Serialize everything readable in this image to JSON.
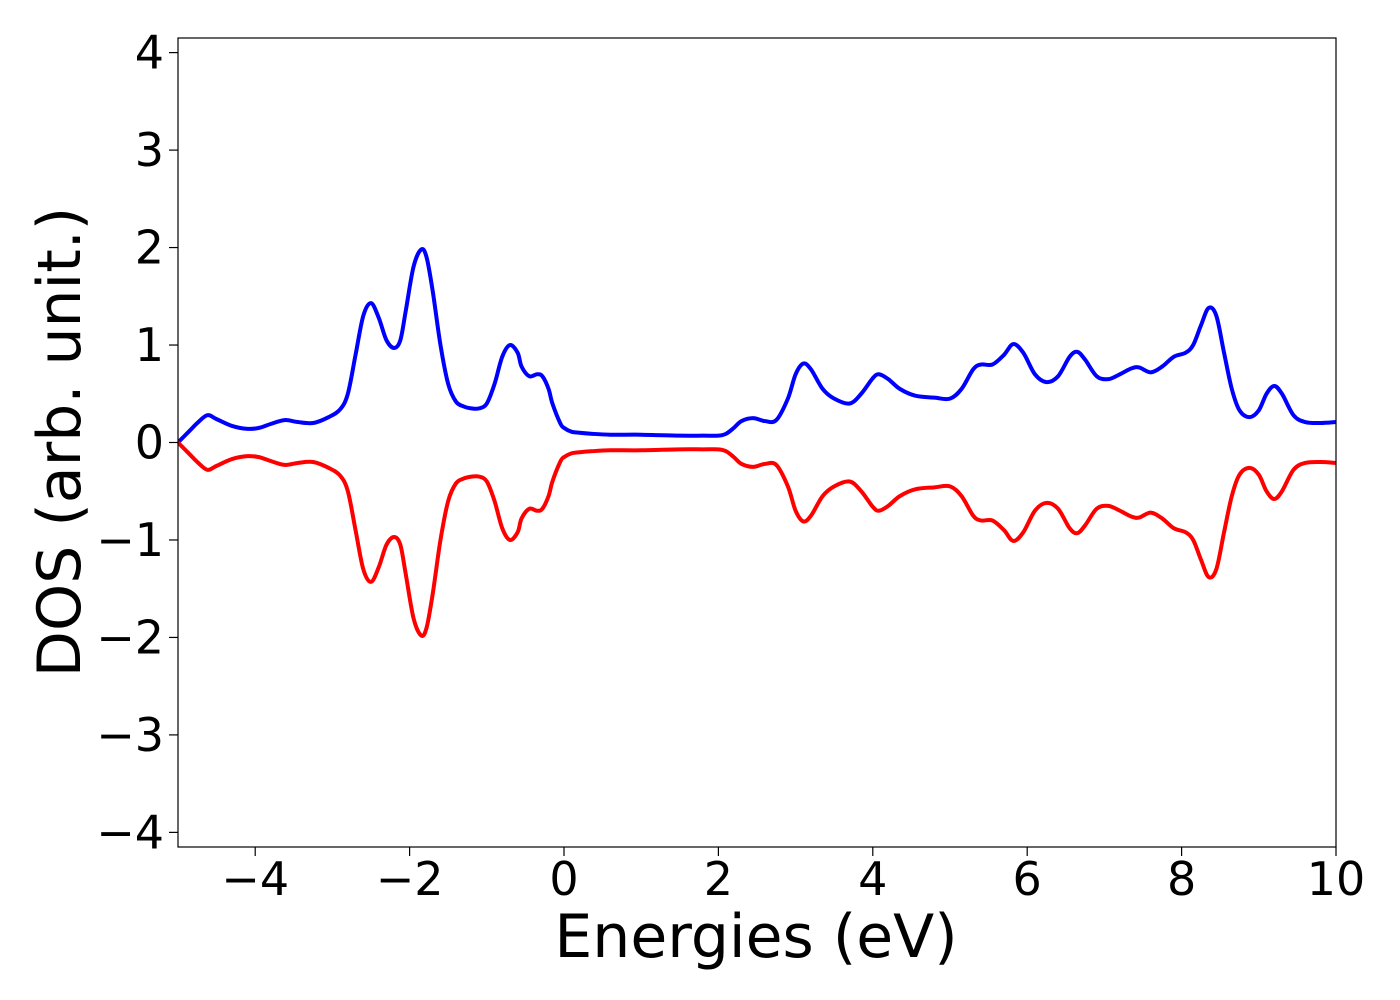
{
  "chart_data": {
    "type": "line",
    "title": "",
    "xlabel": "Energies (eV)",
    "ylabel": "DOS (arb. unit.)",
    "xlim": [
      -5,
      10
    ],
    "ylim": [
      -4.15,
      4.15
    ],
    "xticks": [
      -4,
      -2,
      0,
      2,
      4,
      6,
      8,
      10
    ],
    "yticks": [
      -4,
      -3,
      -2,
      -1,
      0,
      1,
      2,
      3,
      4
    ],
    "grid": false,
    "legend": "none",
    "series": [
      {
        "color": "#0000ff",
        "x": [
          -5.0,
          -4.85,
          -4.75,
          -4.62,
          -4.5,
          -4.3,
          -4.1,
          -3.95,
          -3.8,
          -3.62,
          -3.45,
          -3.25,
          -3.05,
          -2.9,
          -2.8,
          -2.7,
          -2.6,
          -2.5,
          -2.4,
          -2.3,
          -2.2,
          -2.12,
          -2.05,
          -1.95,
          -1.85,
          -1.78,
          -1.7,
          -1.6,
          -1.5,
          -1.4,
          -1.3,
          -1.2,
          -1.1,
          -1.0,
          -0.9,
          -0.8,
          -0.7,
          -0.6,
          -0.55,
          -0.45,
          -0.35,
          -0.28,
          -0.2,
          -0.15,
          -0.05,
          0.0,
          0.1,
          0.2,
          0.35,
          0.6,
          1.0,
          1.5,
          1.8,
          2.0,
          2.1,
          2.2,
          2.3,
          2.45,
          2.6,
          2.75,
          2.9,
          3.0,
          3.1,
          3.2,
          3.35,
          3.5,
          3.7,
          3.85,
          4.0,
          4.08,
          4.2,
          4.35,
          4.55,
          4.8,
          5.0,
          5.15,
          5.3,
          5.4,
          5.55,
          5.7,
          5.82,
          5.95,
          6.1,
          6.25,
          6.4,
          6.55,
          6.65,
          6.75,
          6.9,
          7.05,
          7.2,
          7.35,
          7.45,
          7.6,
          7.75,
          7.9,
          8.05,
          8.15,
          8.25,
          8.35,
          8.45,
          8.55,
          8.65,
          8.75,
          8.88,
          9.0,
          9.1,
          9.2,
          9.3,
          9.45,
          9.6,
          9.8,
          10.0
        ],
        "y": [
          0.0,
          0.12,
          0.2,
          0.28,
          0.24,
          0.17,
          0.14,
          0.15,
          0.19,
          0.23,
          0.21,
          0.2,
          0.26,
          0.34,
          0.5,
          0.9,
          1.3,
          1.43,
          1.28,
          1.05,
          0.97,
          1.05,
          1.35,
          1.8,
          1.98,
          1.9,
          1.55,
          1.0,
          0.6,
          0.42,
          0.37,
          0.35,
          0.35,
          0.4,
          0.6,
          0.88,
          1.0,
          0.92,
          0.78,
          0.68,
          0.7,
          0.68,
          0.55,
          0.4,
          0.2,
          0.15,
          0.11,
          0.1,
          0.09,
          0.08,
          0.08,
          0.07,
          0.07,
          0.07,
          0.09,
          0.15,
          0.22,
          0.25,
          0.22,
          0.23,
          0.45,
          0.7,
          0.81,
          0.75,
          0.55,
          0.45,
          0.4,
          0.5,
          0.66,
          0.7,
          0.65,
          0.55,
          0.48,
          0.46,
          0.45,
          0.55,
          0.75,
          0.8,
          0.8,
          0.9,
          1.01,
          0.92,
          0.7,
          0.62,
          0.68,
          0.88,
          0.93,
          0.85,
          0.68,
          0.65,
          0.7,
          0.76,
          0.77,
          0.72,
          0.78,
          0.88,
          0.92,
          1.0,
          1.2,
          1.38,
          1.3,
          0.92,
          0.55,
          0.33,
          0.26,
          0.33,
          0.5,
          0.58,
          0.5,
          0.28,
          0.21,
          0.2,
          0.21
        ]
      },
      {
        "color": "#ff0000",
        "x": [
          -5.0,
          -4.85,
          -4.75,
          -4.62,
          -4.5,
          -4.3,
          -4.1,
          -3.95,
          -3.8,
          -3.62,
          -3.45,
          -3.25,
          -3.05,
          -2.9,
          -2.8,
          -2.7,
          -2.6,
          -2.5,
          -2.4,
          -2.3,
          -2.2,
          -2.12,
          -2.05,
          -1.95,
          -1.85,
          -1.78,
          -1.7,
          -1.6,
          -1.5,
          -1.4,
          -1.3,
          -1.2,
          -1.1,
          -1.0,
          -0.9,
          -0.8,
          -0.7,
          -0.6,
          -0.55,
          -0.45,
          -0.35,
          -0.28,
          -0.2,
          -0.15,
          -0.05,
          0.0,
          0.1,
          0.2,
          0.35,
          0.6,
          1.0,
          1.5,
          1.8,
          2.0,
          2.1,
          2.2,
          2.3,
          2.45,
          2.6,
          2.75,
          2.9,
          3.0,
          3.1,
          3.2,
          3.35,
          3.5,
          3.7,
          3.85,
          4.0,
          4.08,
          4.2,
          4.35,
          4.55,
          4.8,
          5.0,
          5.15,
          5.3,
          5.4,
          5.55,
          5.7,
          5.82,
          5.95,
          6.1,
          6.25,
          6.4,
          6.55,
          6.65,
          6.75,
          6.9,
          7.05,
          7.2,
          7.35,
          7.45,
          7.6,
          7.75,
          7.9,
          8.05,
          8.15,
          8.25,
          8.35,
          8.45,
          8.55,
          8.65,
          8.75,
          8.88,
          9.0,
          9.1,
          9.2,
          9.3,
          9.45,
          9.6,
          9.8,
          10.0
        ],
        "y": [
          0.0,
          -0.12,
          -0.2,
          -0.28,
          -0.24,
          -0.17,
          -0.14,
          -0.15,
          -0.19,
          -0.23,
          -0.21,
          -0.2,
          -0.26,
          -0.34,
          -0.5,
          -0.9,
          -1.3,
          -1.43,
          -1.28,
          -1.05,
          -0.97,
          -1.05,
          -1.35,
          -1.8,
          -1.98,
          -1.9,
          -1.55,
          -1.0,
          -0.6,
          -0.42,
          -0.37,
          -0.35,
          -0.35,
          -0.4,
          -0.6,
          -0.88,
          -1.0,
          -0.92,
          -0.78,
          -0.68,
          -0.7,
          -0.68,
          -0.55,
          -0.4,
          -0.2,
          -0.15,
          -0.11,
          -0.1,
          -0.09,
          -0.08,
          -0.08,
          -0.07,
          -0.07,
          -0.07,
          -0.09,
          -0.15,
          -0.22,
          -0.25,
          -0.22,
          -0.23,
          -0.45,
          -0.7,
          -0.81,
          -0.75,
          -0.55,
          -0.45,
          -0.4,
          -0.5,
          -0.66,
          -0.7,
          -0.65,
          -0.55,
          -0.48,
          -0.46,
          -0.45,
          -0.55,
          -0.75,
          -0.8,
          -0.8,
          -0.9,
          -1.01,
          -0.92,
          -0.7,
          -0.62,
          -0.68,
          -0.88,
          -0.93,
          -0.85,
          -0.68,
          -0.65,
          -0.7,
          -0.76,
          -0.77,
          -0.72,
          -0.78,
          -0.88,
          -0.92,
          -1.0,
          -1.2,
          -1.38,
          -1.3,
          -0.92,
          -0.55,
          -0.33,
          -0.26,
          -0.33,
          -0.5,
          -0.58,
          -0.5,
          -0.28,
          -0.21,
          -0.2,
          -0.21
        ]
      }
    ]
  }
}
